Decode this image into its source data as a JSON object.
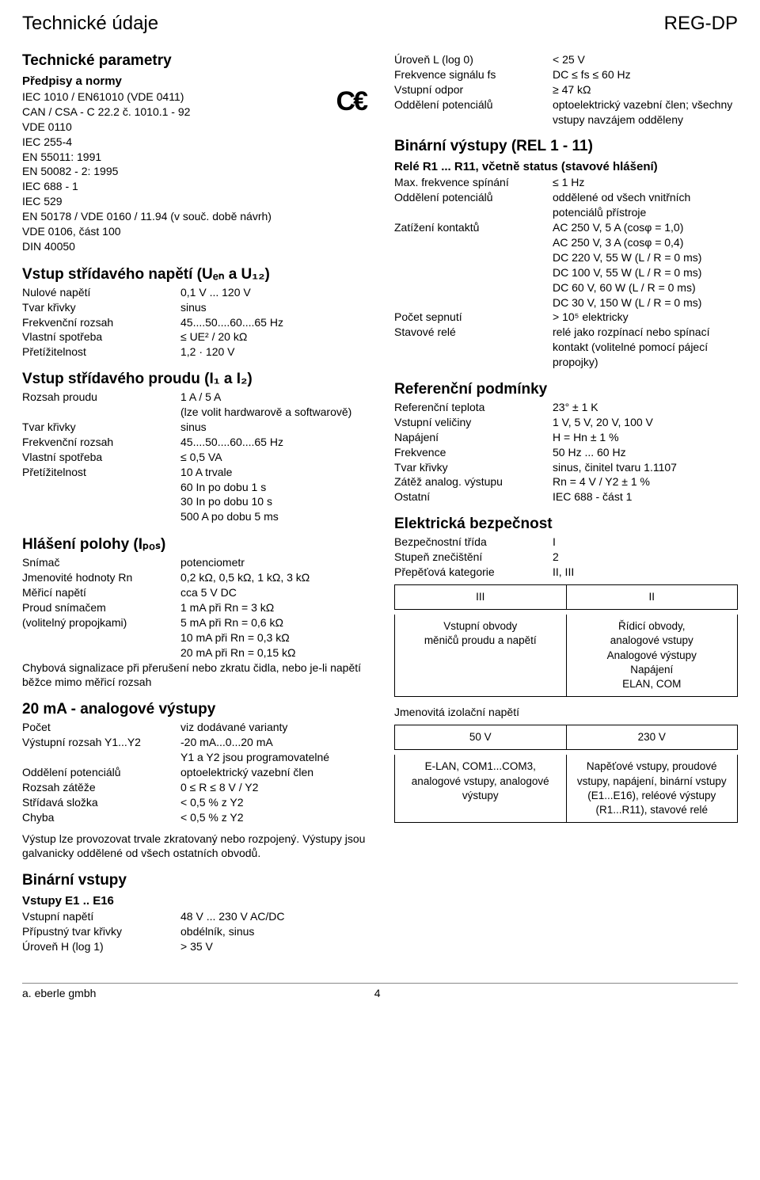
{
  "page": {
    "title_left": "Technické údaje",
    "title_right": "REG-DP",
    "footer_left": "a. eberle gmbh",
    "footer_page": "4"
  },
  "tech_params": {
    "heading": "Technické parametry",
    "regs_heading": "Předpisy a normy",
    "regs": [
      "IEC 1010 / EN61010 (VDE 0411)",
      "CAN / CSA - C 22.2 č. 1010.1 - 92",
      "VDE 0110",
      "IEC 255-4",
      "EN 55011: 1991",
      "EN 50082 - 2: 1995",
      "IEC 688 - 1",
      "IEC 529",
      "EN 50178 / VDE 0160 / 11.94 (v souč. době návrh)",
      "VDE 0106, část 100",
      "DIN 40050"
    ]
  },
  "ac_voltage": {
    "heading": "Vstup střídavého napětí (Uₑₙ a U₁₂)",
    "rows": [
      [
        "Nulové napětí",
        "0,1 V ... 120 V"
      ],
      [
        "Tvar křivky",
        "sinus"
      ],
      [
        "Frekvenční rozsah",
        "45....50....60....65 Hz"
      ],
      [
        "Vlastní spotřeba",
        "≤ UE² / 20 kΩ"
      ],
      [
        "Přetížitelnost",
        "1,2 · 120 V"
      ]
    ]
  },
  "ac_current": {
    "heading": "Vstup střídavého proudu (I₁ a I₂)",
    "rows": [
      [
        "Rozsah proudu",
        "1 A / 5 A\n(lze volit hardwarově a softwarově)"
      ],
      [
        "Tvar křivky",
        "sinus"
      ],
      [
        "Frekvenční rozsah",
        "45....50....60....65 Hz"
      ],
      [
        "Vlastní spotřeba",
        "≤ 0,5 VA"
      ],
      [
        "Přetížitelnost",
        "10 A trvale\n60 In po dobu 1 s\n30 In po dobu 10 s\n500 A po dobu 5 ms"
      ]
    ]
  },
  "pos_report": {
    "heading": "Hlášení polohy (Iₚₒₛ)",
    "rows": [
      [
        "Snímač",
        "potenciometr"
      ],
      [
        "Jmenovité hodnoty Rn",
        "0,2 kΩ, 0,5 kΩ, 1 kΩ, 3 kΩ"
      ],
      [
        "Měřicí napětí",
        "cca 5 V DC"
      ],
      [
        "Proud snímačem",
        "1 mA při Rn = 3 kΩ"
      ],
      [
        "(volitelný propojkami)",
        "5 mA při Rn = 0,6 kΩ\n10 mA při Rn = 0,3 kΩ\n20 mA při Rn = 0,15 kΩ"
      ]
    ],
    "note": "Chybová signalizace při přerušení nebo zkratu čidla, nebo je-li napětí běžce mimo měřicí rozsah"
  },
  "analog_out": {
    "heading": "20 mA - analogové výstupy",
    "rows": [
      [
        "Počet",
        "viz dodávané varianty"
      ],
      [
        "Výstupní rozsah Y1...Y2",
        "-20 mA...0...20 mA\nY1 a Y2 jsou programovatelné"
      ],
      [
        "Oddělení potenciálů",
        "optoelektrický vazební člen"
      ],
      [
        "Rozsah zátěže",
        "0 ≤ R ≤ 8 V / Y2"
      ],
      [
        "Střídavá složka",
        "< 0,5 % z Y2"
      ],
      [
        "Chyba",
        "< 0,5 % z Y2"
      ]
    ],
    "note": "Výstup lze provozovat trvale zkratovaný nebo rozpojený. Výstupy jsou galvanicky oddělené od všech ostatních obvodů."
  },
  "bin_in": {
    "heading": "Binární vstupy",
    "sub": "Vstupy E1 .. E16",
    "rows": [
      [
        "Vstupní napětí",
        "48 V ... 230 V AC/DC"
      ],
      [
        "Přípustný tvar křivky",
        "obdélník, sinus"
      ],
      [
        "Úroveň H (log 1)",
        "> 35 V"
      ]
    ]
  },
  "bin_in_cont": {
    "rows": [
      [
        "Úroveň L (log 0)",
        "< 25 V"
      ],
      [
        "Frekvence signálu fs",
        "DC ≤ fs ≤ 60 Hz"
      ],
      [
        "Vstupní odpor",
        "≥ 47 kΩ"
      ],
      [
        "Oddělení potenciálů",
        "optoelektrický vazební člen; všechny vstupy navzájem odděleny"
      ]
    ]
  },
  "bin_out": {
    "heading": "Binární výstupy (REL 1 - 11)",
    "sub": "Relé R1 ... R11, včetně status (stavové hlášení)",
    "rows": [
      [
        "Max. frekvence spínání",
        "≤ 1 Hz"
      ],
      [
        "Oddělení potenciálů",
        "oddělené od všech vnitřních potenciálů přístroje"
      ],
      [
        "Zatížení kontaktů",
        "AC 250 V, 5 A (cosφ = 1,0)\nAC 250 V, 3 A (cosφ = 0,4)\nDC 220 V, 55 W (L / R = 0 ms)\nDC 100 V, 55 W (L / R = 0 ms)\nDC 60 V, 60 W (L / R = 0 ms)\nDC 30 V, 150 W (L / R = 0 ms)"
      ],
      [
        "Počet sepnutí",
        "> 10⁵ elektricky"
      ],
      [
        "Stavové relé",
        "relé jako rozpínací nebo spínací kontakt (volitelné pomocí pájecí propojky)"
      ]
    ]
  },
  "ref_cond": {
    "heading": "Referenční podmínky",
    "rows": [
      [
        "Referenční teplota",
        "23° ± 1 K"
      ],
      [
        "Vstupní veličiny",
        "1 V, 5 V, 20 V, 100 V"
      ],
      [
        "Napájení",
        "H = Hn ± 1 %"
      ],
      [
        "Frekvence",
        "50 Hz ... 60 Hz"
      ],
      [
        "Tvar křivky",
        "sinus, činitel tvaru 1.1107"
      ],
      [
        "Zátěž analog. výstupu",
        "Rn = 4 V / Y2 ± 1 %"
      ],
      [
        "Ostatní",
        "IEC 688 - část 1"
      ]
    ]
  },
  "el_safety": {
    "heading": "Elektrická bezpečnost",
    "rows": [
      [
        "Bezpečnostní třída",
        "I"
      ],
      [
        "Stupeň znečištění",
        "2"
      ],
      [
        "Přepěťová kategorie",
        "II, III"
      ]
    ]
  },
  "table1": {
    "head": [
      "III",
      "II"
    ],
    "row": [
      "Vstupní obvody\nměničů proudu a napětí",
      "Řídicí obvody,\nanalogové vstupy\nAnalogové výstupy\nNapájení\nELAN, COM"
    ]
  },
  "iso_label": "Jmenovitá izolační napětí",
  "table2": {
    "head": [
      "50 V",
      "230 V"
    ],
    "row": [
      "E-LAN, COM1...COM3,\nanalogové vstupy, analogové výstupy",
      "Napěťové vstupy, proudové vstupy, napájení, binární vstupy (E1...E16), reléové výstupy (R1...R11), stavové relé"
    ]
  }
}
